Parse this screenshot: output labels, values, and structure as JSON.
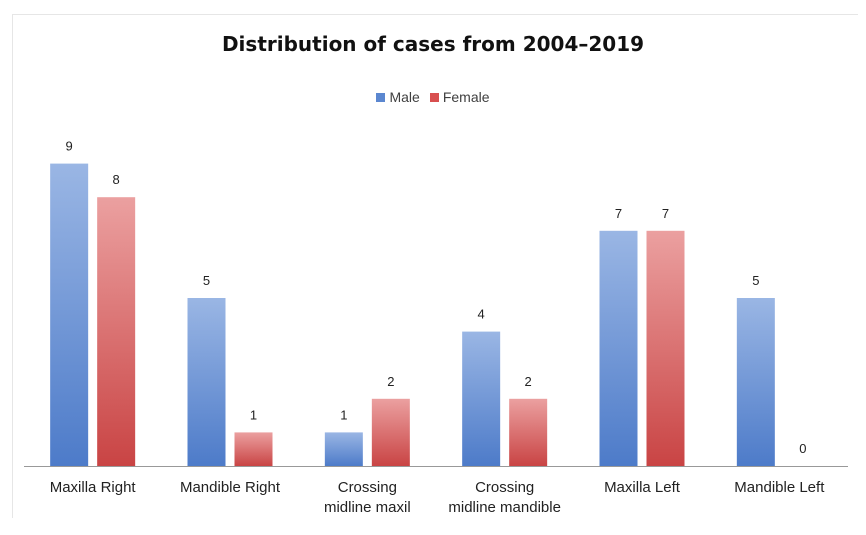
{
  "chart_data": {
    "type": "bar",
    "title": "Distribution of cases from 2004–2019",
    "xlabel": "",
    "ylabel": "",
    "categories": [
      [
        "Maxilla Right"
      ],
      [
        "Mandible Right"
      ],
      [
        "Crossing",
        "midline maxil"
      ],
      [
        "Crossing",
        "midline mandible"
      ],
      [
        "Maxilla Left"
      ],
      [
        "Mandible Left"
      ]
    ],
    "series": [
      {
        "name": "Male",
        "values": [
          9,
          5,
          1,
          4,
          7,
          5
        ],
        "color": "#6f95d6"
      },
      {
        "name": "Female",
        "values": [
          8,
          1,
          2,
          2,
          7,
          0
        ],
        "color": "#d65b5b"
      }
    ],
    "ylim": [
      0,
      9
    ],
    "grid": false,
    "legend_position": "top-center"
  }
}
